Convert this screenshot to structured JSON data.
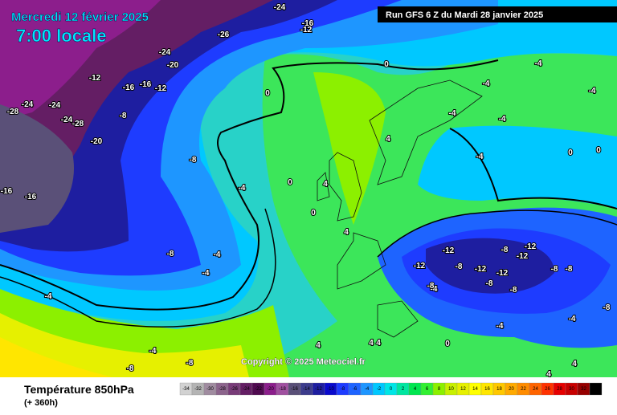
{
  "header": {
    "date": "Mercredi 12 février 2025",
    "time": "7:00 locale",
    "run": "Run GFS 6 Z du Mardi 28 janvier 2025"
  },
  "footer": {
    "variable": "Température 850hPa",
    "lead": "(+ 360h)",
    "copyright": "Copyright © 2025 Meteociel.fr"
  },
  "legend": {
    "ticks": [
      -34,
      -32,
      -30,
      -28,
      -26,
      -24,
      -22,
      -20,
      -18,
      -16,
      -14,
      -12,
      -10,
      -8,
      -6,
      -4,
      -2,
      0,
      2,
      4,
      6,
      8,
      10,
      12,
      14,
      16,
      18,
      20,
      22,
      24,
      26,
      28,
      30,
      32,
      34
    ],
    "colors": [
      "#d2d2d2",
      "#b4b4b4",
      "#a08ca0",
      "#8c648c",
      "#783c78",
      "#641e64",
      "#500a50",
      "#8c1e8c",
      "#a050a0",
      "#5a5078",
      "#3c3c8c",
      "#1e1ea0",
      "#0a0acd",
      "#1e3cff",
      "#1e64ff",
      "#1e96ff",
      "#00c8ff",
      "#00e6e6",
      "#00e6a0",
      "#00e650",
      "#32f032",
      "#8cf000",
      "#c8f000",
      "#e6f000",
      "#ffff00",
      "#ffe600",
      "#ffc800",
      "#ffaa00",
      "#ff8c00",
      "#ff6400",
      "#ff3200",
      "#e60000",
      "#c80000",
      "#960000",
      "#000000"
    ]
  },
  "contour_labels": [
    -24,
    -16,
    -12,
    -26,
    -24,
    -20,
    -12,
    -16,
    -16,
    -12,
    -28,
    -24,
    -24,
    -8,
    -24,
    -28,
    -20,
    -8,
    -16,
    -16,
    -4,
    -8,
    -4,
    -4,
    -4,
    -4,
    -8,
    -8,
    0,
    0,
    0,
    4,
    4,
    0,
    4,
    -4,
    -4,
    -4,
    -4,
    -4,
    -4,
    0,
    0,
    -12,
    -12,
    -12,
    -12,
    -12,
    -12,
    -8,
    -8,
    -8,
    -8,
    -8,
    -8,
    -8,
    -4,
    -4,
    -4,
    -8,
    0,
    4,
    4,
    4,
    4,
    4
  ]
}
